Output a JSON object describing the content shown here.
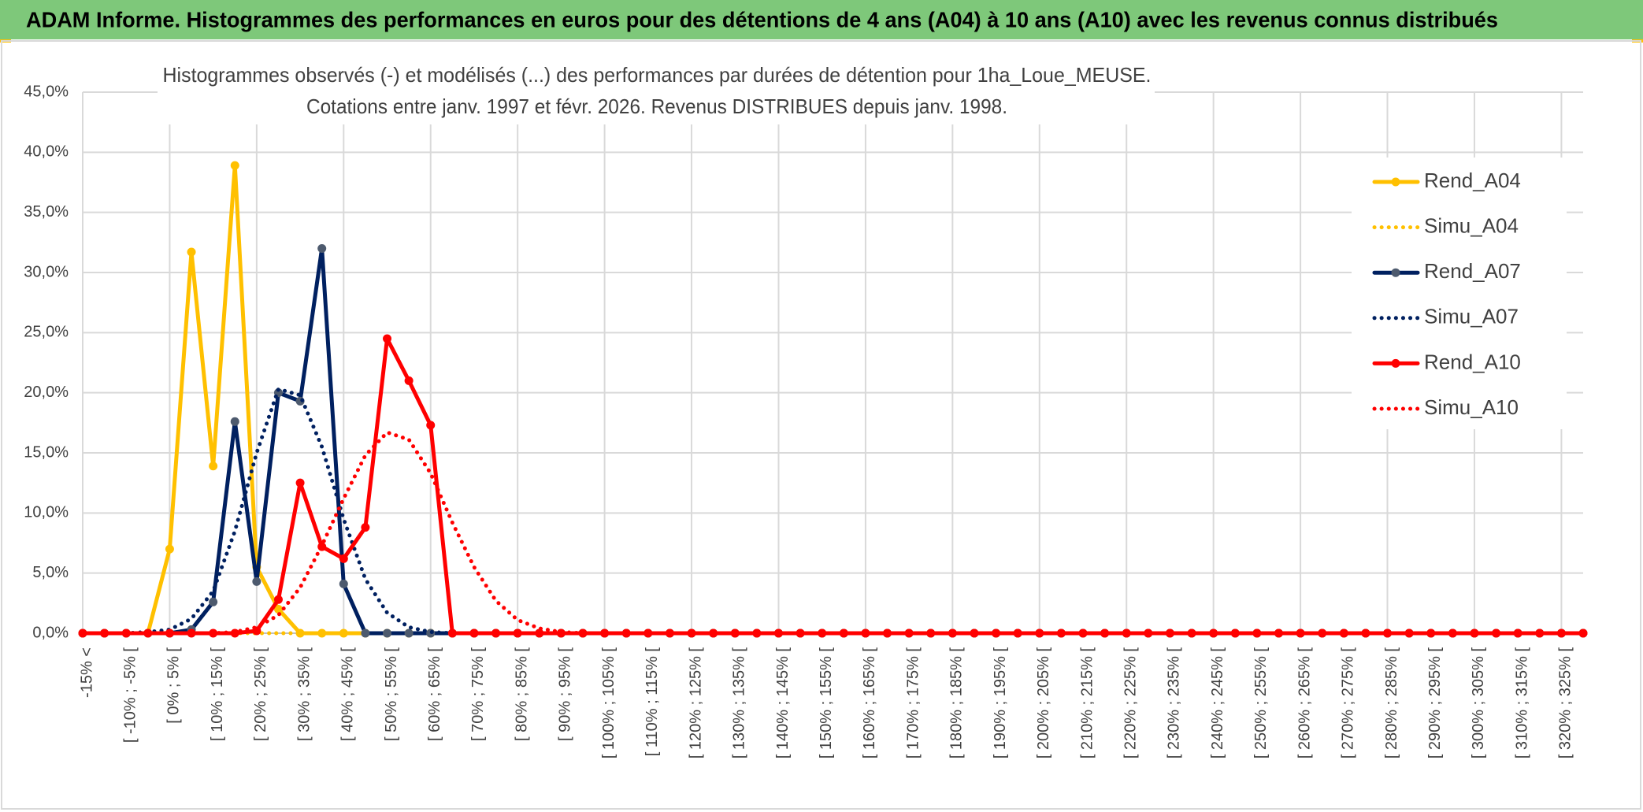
{
  "header": {
    "title": "ADAM Informe. Histogrammes des performances en euros pour des détentions de 4 ans (A04) à 10 ans (A10) avec les revenus connus distribués"
  },
  "chart_data": {
    "type": "line",
    "title": "Histogrammes observés (-) et modélisés (...) des performances par durées de détention pour 1ha_Loue_MEUSE.",
    "subtitle": "Cotations entre janv. 1997 et févr. 2026.  Revenus DISTRIBUES depuis janv. 1998.",
    "categories": [
      "-15% <",
      null,
      "[ -10% ; -5% [",
      null,
      "[ 0% ; 5% [",
      null,
      "[ 10% ; 15% [",
      null,
      "[ 20% ; 25% [",
      null,
      "[ 30% ; 35% [",
      null,
      "[ 40% ; 45% [",
      null,
      "[ 50% ; 55% [",
      null,
      "[ 60% ; 65% [",
      null,
      "[ 70% ; 75% [",
      null,
      "[ 80% ; 85% [",
      null,
      "[ 90% ; 95% [",
      null,
      "[ 100% ; 105% [",
      null,
      "[ 110% ; 115% [",
      null,
      "[ 120% ; 125% [",
      null,
      "[ 130% ; 135% [",
      null,
      "[ 140% ; 145% [",
      null,
      "[ 150% ; 155% [",
      null,
      "[ 160% ; 165% [",
      null,
      "[ 170% ; 175% [",
      null,
      "[ 180% ; 185% [",
      null,
      "[ 190% ; 195% [",
      null,
      "[ 200% ; 205% [",
      null,
      "[ 210% ; 215% [",
      null,
      "[ 220% ; 225% [",
      null,
      "[ 230% ; 235% [",
      null,
      "[ 240% ; 245% [",
      null,
      "[ 250% ; 255% [",
      null,
      "[ 260% ; 265% [",
      null,
      "[ 270% ; 275% [",
      null,
      "[ 280% ; 285% [",
      null,
      "[ 290% ; 295% [",
      null,
      "[ 300% ; 305% [",
      null,
      "[ 310% ; 315% [",
      null,
      "[ 320% ; 325% [",
      null
    ],
    "series": [
      {
        "name": "Rend_A04",
        "color": "#ffc000",
        "line_style": "solid",
        "markers": true,
        "values": [
          0,
          0,
          0,
          0,
          7.0,
          31.7,
          13.9,
          38.9,
          5.5,
          2.0,
          0,
          0,
          0,
          0,
          0,
          0,
          0,
          0,
          0,
          0,
          0,
          0,
          0,
          0,
          0,
          0,
          0,
          0,
          0,
          0,
          0,
          0,
          0,
          0,
          0,
          0,
          0,
          0,
          0,
          0,
          0,
          0,
          0,
          0,
          0,
          0,
          0,
          0,
          0,
          0,
          0,
          0,
          0,
          0,
          0,
          0,
          0,
          0,
          0,
          0,
          0,
          0,
          0,
          0,
          0,
          0,
          0,
          0,
          0,
          0
        ]
      },
      {
        "name": "Simu_A04",
        "color": "#ffc000",
        "line_style": "dotted",
        "markers": false,
        "values": [
          0,
          0,
          0,
          0,
          0,
          0,
          0,
          0,
          0,
          0,
          0,
          0,
          0,
          0,
          0,
          0,
          0,
          0,
          0,
          0,
          0,
          0,
          0,
          0,
          0,
          0,
          0,
          0,
          0,
          0,
          0,
          0,
          0,
          0,
          0,
          0,
          0,
          0,
          0,
          0,
          0,
          0,
          0,
          0,
          0,
          0,
          0,
          0,
          0,
          0,
          0,
          0,
          0,
          0,
          0,
          0,
          0,
          0,
          0,
          0,
          0,
          0,
          0,
          0,
          0,
          0,
          0,
          0,
          0,
          0
        ]
      },
      {
        "name": "Rend_A07",
        "color": "#002060",
        "marker_color": "#4d5a6e",
        "line_style": "solid",
        "markers": true,
        "values": [
          0,
          0,
          0,
          0,
          0,
          0.3,
          2.6,
          17.6,
          4.3,
          20.0,
          19.3,
          32.0,
          4.1,
          0,
          0,
          0,
          0,
          0,
          0,
          0,
          0,
          0,
          0,
          0,
          0,
          0,
          0,
          0,
          0,
          0,
          0,
          0,
          0,
          0,
          0,
          0,
          0,
          0,
          0,
          0,
          0,
          0,
          0,
          0,
          0,
          0,
          0,
          0,
          0,
          0,
          0,
          0,
          0,
          0,
          0,
          0,
          0,
          0,
          0,
          0,
          0,
          0,
          0,
          0,
          0,
          0,
          0,
          0,
          0,
          0
        ]
      },
      {
        "name": "Simu_A07",
        "color": "#002060",
        "line_style": "dotted",
        "markers": false,
        "values": [
          0,
          0,
          0,
          0.1,
          0.3,
          1.2,
          3.5,
          8.5,
          15.0,
          20.3,
          19.8,
          15.5,
          9.5,
          4.5,
          1.7,
          0.5,
          0.1,
          0,
          0,
          0,
          0,
          0,
          0,
          0,
          0,
          0,
          0,
          0,
          0,
          0,
          0,
          0,
          0,
          0,
          0,
          0,
          0,
          0,
          0,
          0,
          0,
          0,
          0,
          0,
          0,
          0,
          0,
          0,
          0,
          0,
          0,
          0,
          0,
          0,
          0,
          0,
          0,
          0,
          0,
          0,
          0,
          0,
          0,
          0,
          0,
          0,
          0,
          0,
          0,
          0
        ]
      },
      {
        "name": "Rend_A10",
        "color": "#ff0000",
        "line_style": "solid",
        "markers": true,
        "values": [
          0,
          0,
          0,
          0,
          0,
          0,
          0,
          0,
          0.2,
          2.8,
          12.5,
          7.2,
          6.2,
          8.8,
          24.5,
          21.0,
          17.3,
          0,
          0,
          0,
          0,
          0,
          0,
          0,
          0,
          0,
          0,
          0,
          0,
          0,
          0,
          0,
          0,
          0,
          0,
          0,
          0,
          0,
          0,
          0,
          0,
          0,
          0,
          0,
          0,
          0,
          0,
          0,
          0,
          0,
          0,
          0,
          0,
          0,
          0,
          0,
          0,
          0,
          0,
          0,
          0,
          0,
          0,
          0,
          0,
          0,
          0,
          0,
          0,
          0
        ]
      },
      {
        "name": "Simu_A10",
        "color": "#ff0000",
        "line_style": "dotted",
        "markers": false,
        "values": [
          0,
          0,
          0,
          0,
          0,
          0,
          0,
          0.1,
          0.5,
          1.5,
          3.8,
          7.3,
          11.2,
          14.8,
          16.7,
          16.1,
          13.3,
          9.2,
          5.5,
          2.7,
          1.1,
          0.4,
          0.1,
          0,
          0,
          0,
          0,
          0,
          0,
          0,
          0,
          0,
          0,
          0,
          0,
          0,
          0,
          0,
          0,
          0,
          0,
          0,
          0,
          0,
          0,
          0,
          0,
          0,
          0,
          0,
          0,
          0,
          0,
          0,
          0,
          0,
          0,
          0,
          0,
          0,
          0,
          0,
          0,
          0,
          0,
          0,
          0,
          0,
          0,
          0
        ]
      }
    ],
    "ylim": [
      0,
      45
    ],
    "yticks": [
      {
        "value": 0,
        "label": "0,0%"
      },
      {
        "value": 5,
        "label": "5,0%"
      },
      {
        "value": 10,
        "label": "10,0%"
      },
      {
        "value": 15,
        "label": "15,0%"
      },
      {
        "value": 20,
        "label": "20,0%"
      },
      {
        "value": 25,
        "label": "25,0%"
      },
      {
        "value": 30,
        "label": "30,0%"
      },
      {
        "value": 35,
        "label": "35,0%"
      },
      {
        "value": 40,
        "label": "40,0%"
      },
      {
        "value": 45,
        "label": "45,0%"
      }
    ],
    "grid": true,
    "legend": "right"
  }
}
